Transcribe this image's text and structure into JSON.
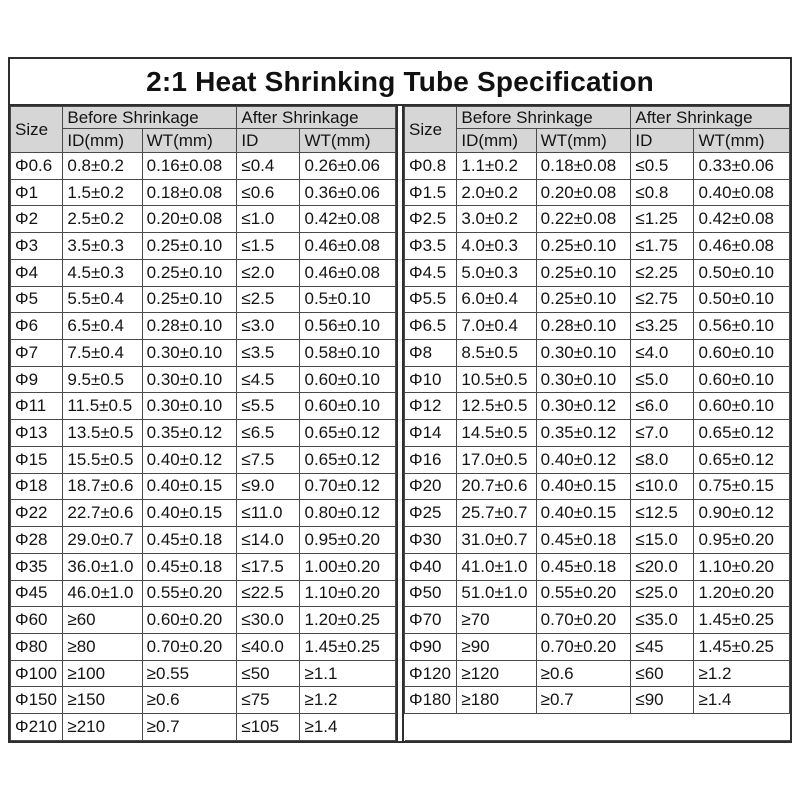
{
  "title": "2:1 Heat Shrinking Tube Specification",
  "colors": {
    "background": "#ffffff",
    "header_bg": "#d6d6d6",
    "border": "#4a4a4a",
    "outer_border": "#2e2e2e",
    "text": "#141414"
  },
  "headers": {
    "size": "Size",
    "before": "Before Shrinkage",
    "after": "After Shrinkage",
    "sub": [
      "ID(mm)",
      "WT(mm)",
      "ID",
      "WT(mm)"
    ]
  },
  "tables": [
    {
      "name": "left",
      "rows": [
        [
          "Φ0.6",
          "0.8±0.2",
          "0.16±0.08",
          "≤0.4",
          "0.26±0.06"
        ],
        [
          "Φ1",
          "1.5±0.2",
          "0.18±0.08",
          "≤0.6",
          "0.36±0.06"
        ],
        [
          "Φ2",
          "2.5±0.2",
          "0.20±0.08",
          "≤1.0",
          "0.42±0.08"
        ],
        [
          "Φ3",
          "3.5±0.3",
          "0.25±0.10",
          "≤1.5",
          "0.46±0.08"
        ],
        [
          "Φ4",
          "4.5±0.3",
          "0.25±0.10",
          "≤2.0",
          "0.46±0.08"
        ],
        [
          "Φ5",
          "5.5±0.4",
          "0.25±0.10",
          "≤2.5",
          "0.5±0.10"
        ],
        [
          "Φ6",
          "6.5±0.4",
          "0.28±0.10",
          "≤3.0",
          "0.56±0.10"
        ],
        [
          "Φ7",
          "7.5±0.4",
          "0.30±0.10",
          "≤3.5",
          "0.58±0.10"
        ],
        [
          "Φ9",
          "9.5±0.5",
          "0.30±0.10",
          "≤4.5",
          "0.60±0.10"
        ],
        [
          "Φ11",
          "11.5±0.5",
          "0.30±0.10",
          "≤5.5",
          "0.60±0.10"
        ],
        [
          "Φ13",
          "13.5±0.5",
          "0.35±0.12",
          "≤6.5",
          "0.65±0.12"
        ],
        [
          "Φ15",
          "15.5±0.5",
          "0.40±0.12",
          "≤7.5",
          "0.65±0.12"
        ],
        [
          "Φ18",
          "18.7±0.6",
          "0.40±0.15",
          "≤9.0",
          "0.70±0.12"
        ],
        [
          "Φ22",
          "22.7±0.6",
          "0.40±0.15",
          "≤11.0",
          "0.80±0.12"
        ],
        [
          "Φ28",
          "29.0±0.7",
          "0.45±0.18",
          "≤14.0",
          "0.95±0.20"
        ],
        [
          "Φ35",
          "36.0±1.0",
          "0.45±0.18",
          "≤17.5",
          "1.00±0.20"
        ],
        [
          "Φ45",
          "46.0±1.0",
          "0.55±0.20",
          "≤22.5",
          "1.10±0.20"
        ],
        [
          "Φ60",
          "≥60",
          "0.60±0.20",
          "≤30.0",
          "1.20±0.25"
        ],
        [
          "Φ80",
          "≥80",
          "0.70±0.20",
          "≤40.0",
          "1.45±0.25"
        ],
        [
          "Φ100",
          "≥100",
          "≥0.55",
          "≤50",
          "≥1.1"
        ],
        [
          "Φ150",
          "≥150",
          "≥0.6",
          "≤75",
          "≥1.2"
        ],
        [
          "Φ210",
          "≥210",
          "≥0.7",
          "≤105",
          "≥1.4"
        ]
      ],
      "trailing_empty_row": false
    },
    {
      "name": "right",
      "rows": [
        [
          "Φ0.8",
          "1.1±0.2",
          "0.18±0.08",
          "≤0.5",
          "0.33±0.06"
        ],
        [
          "Φ1.5",
          "2.0±0.2",
          "0.20±0.08",
          "≤0.8",
          "0.40±0.08"
        ],
        [
          "Φ2.5",
          "3.0±0.2",
          "0.22±0.08",
          "≤1.25",
          "0.42±0.08"
        ],
        [
          "Φ3.5",
          "4.0±0.3",
          "0.25±0.10",
          "≤1.75",
          "0.46±0.08"
        ],
        [
          "Φ4.5",
          "5.0±0.3",
          "0.25±0.10",
          "≤2.25",
          "0.50±0.10"
        ],
        [
          "Φ5.5",
          "6.0±0.4",
          "0.25±0.10",
          "≤2.75",
          "0.50±0.10"
        ],
        [
          "Φ6.5",
          "7.0±0.4",
          "0.28±0.10",
          "≤3.25",
          "0.56±0.10"
        ],
        [
          "Φ8",
          "8.5±0.5",
          "0.30±0.10",
          "≤4.0",
          "0.60±0.10"
        ],
        [
          "Φ10",
          "10.5±0.5",
          "0.30±0.10",
          "≤5.0",
          "0.60±0.10"
        ],
        [
          "Φ12",
          "12.5±0.5",
          "0.30±0.12",
          "≤6.0",
          "0.60±0.10"
        ],
        [
          "Φ14",
          "14.5±0.5",
          "0.35±0.12",
          "≤7.0",
          "0.65±0.12"
        ],
        [
          "Φ16",
          "17.0±0.5",
          "0.40±0.12",
          "≤8.0",
          "0.65±0.12"
        ],
        [
          "Φ20",
          "20.7±0.6",
          "0.40±0.15",
          "≤10.0",
          "0.75±0.15"
        ],
        [
          "Φ25",
          "25.7±0.7",
          "0.40±0.15",
          "≤12.5",
          "0.90±0.12"
        ],
        [
          "Φ30",
          "31.0±0.7",
          "0.45±0.18",
          "≤15.0",
          "0.95±0.20"
        ],
        [
          "Φ40",
          "41.0±1.0",
          "0.45±0.18",
          "≤20.0",
          "1.10±0.20"
        ],
        [
          "Φ50",
          "51.0±1.0",
          "0.55±0.20",
          "≤25.0",
          "1.20±0.20"
        ],
        [
          "Φ70",
          "≥70",
          "0.70±0.20",
          "≤35.0",
          "1.45±0.25"
        ],
        [
          "Φ90",
          "≥90",
          "0.70±0.20",
          "≤45",
          "1.45±0.25"
        ],
        [
          "Φ120",
          "≥120",
          "≥0.6",
          "≤60",
          "≥1.2"
        ],
        [
          "Φ180",
          "≥180",
          "≥0.7",
          "≤90",
          "≥1.4"
        ]
      ],
      "trailing_empty_row": true
    }
  ]
}
